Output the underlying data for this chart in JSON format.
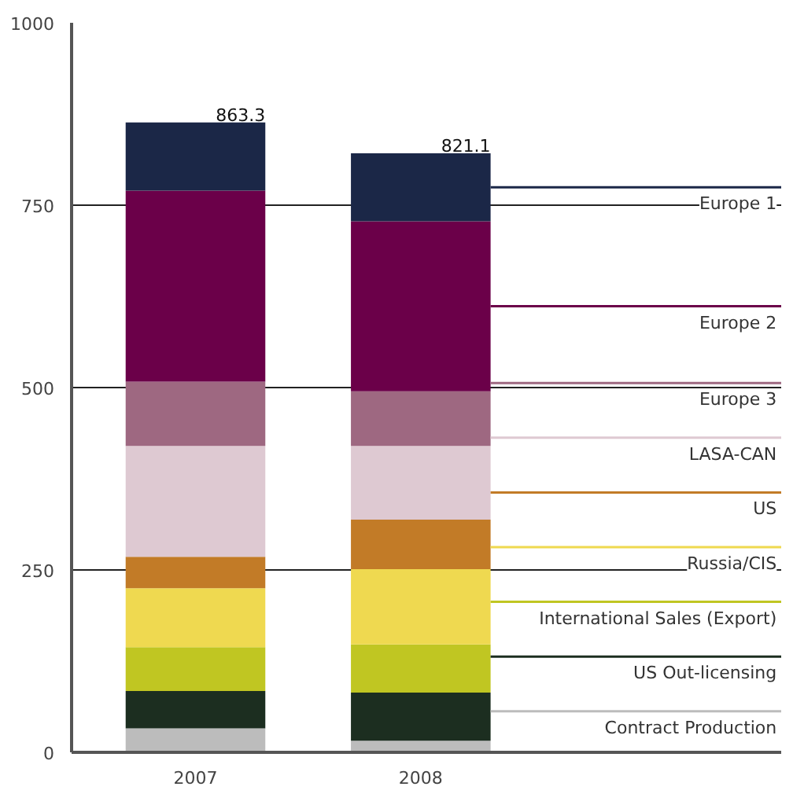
{
  "chart_data": {
    "type": "bar",
    "stacked": true,
    "categories": [
      "2007",
      "2008"
    ],
    "series": [
      {
        "name": "Contract Production",
        "color": "#bcbcbc",
        "values": [
          33,
          16
        ]
      },
      {
        "name": "US Out-licensing",
        "color": "#1c2e20",
        "values": [
          51,
          66
        ]
      },
      {
        "name": "International Sales (Export)",
        "color": "#c0c622",
        "values": [
          60,
          66
        ]
      },
      {
        "name": "Russia/CIS",
        "color": "#efd950",
        "values": [
          81,
          103
        ]
      },
      {
        "name": "US",
        "color": "#c27b27",
        "values": [
          43,
          68
        ]
      },
      {
        "name": "LASA-CAN",
        "color": "#dec9d2",
        "values": [
          152,
          101
        ]
      },
      {
        "name": "Europe 3",
        "color": "#9e6881",
        "values": [
          88,
          75
        ]
      },
      {
        "name": "Europe 2",
        "color": "#6b0049",
        "values": [
          262,
          233
        ]
      },
      {
        "name": "Europe 1",
        "color": "#1b2747",
        "values": [
          93.3,
          93.1
        ]
      }
    ],
    "totals": [
      "863.3",
      "821.1"
    ],
    "ylim": [
      0,
      1000
    ],
    "yticks": [
      0,
      250,
      500,
      750,
      1000
    ],
    "grid": "y",
    "legend": "right"
  }
}
